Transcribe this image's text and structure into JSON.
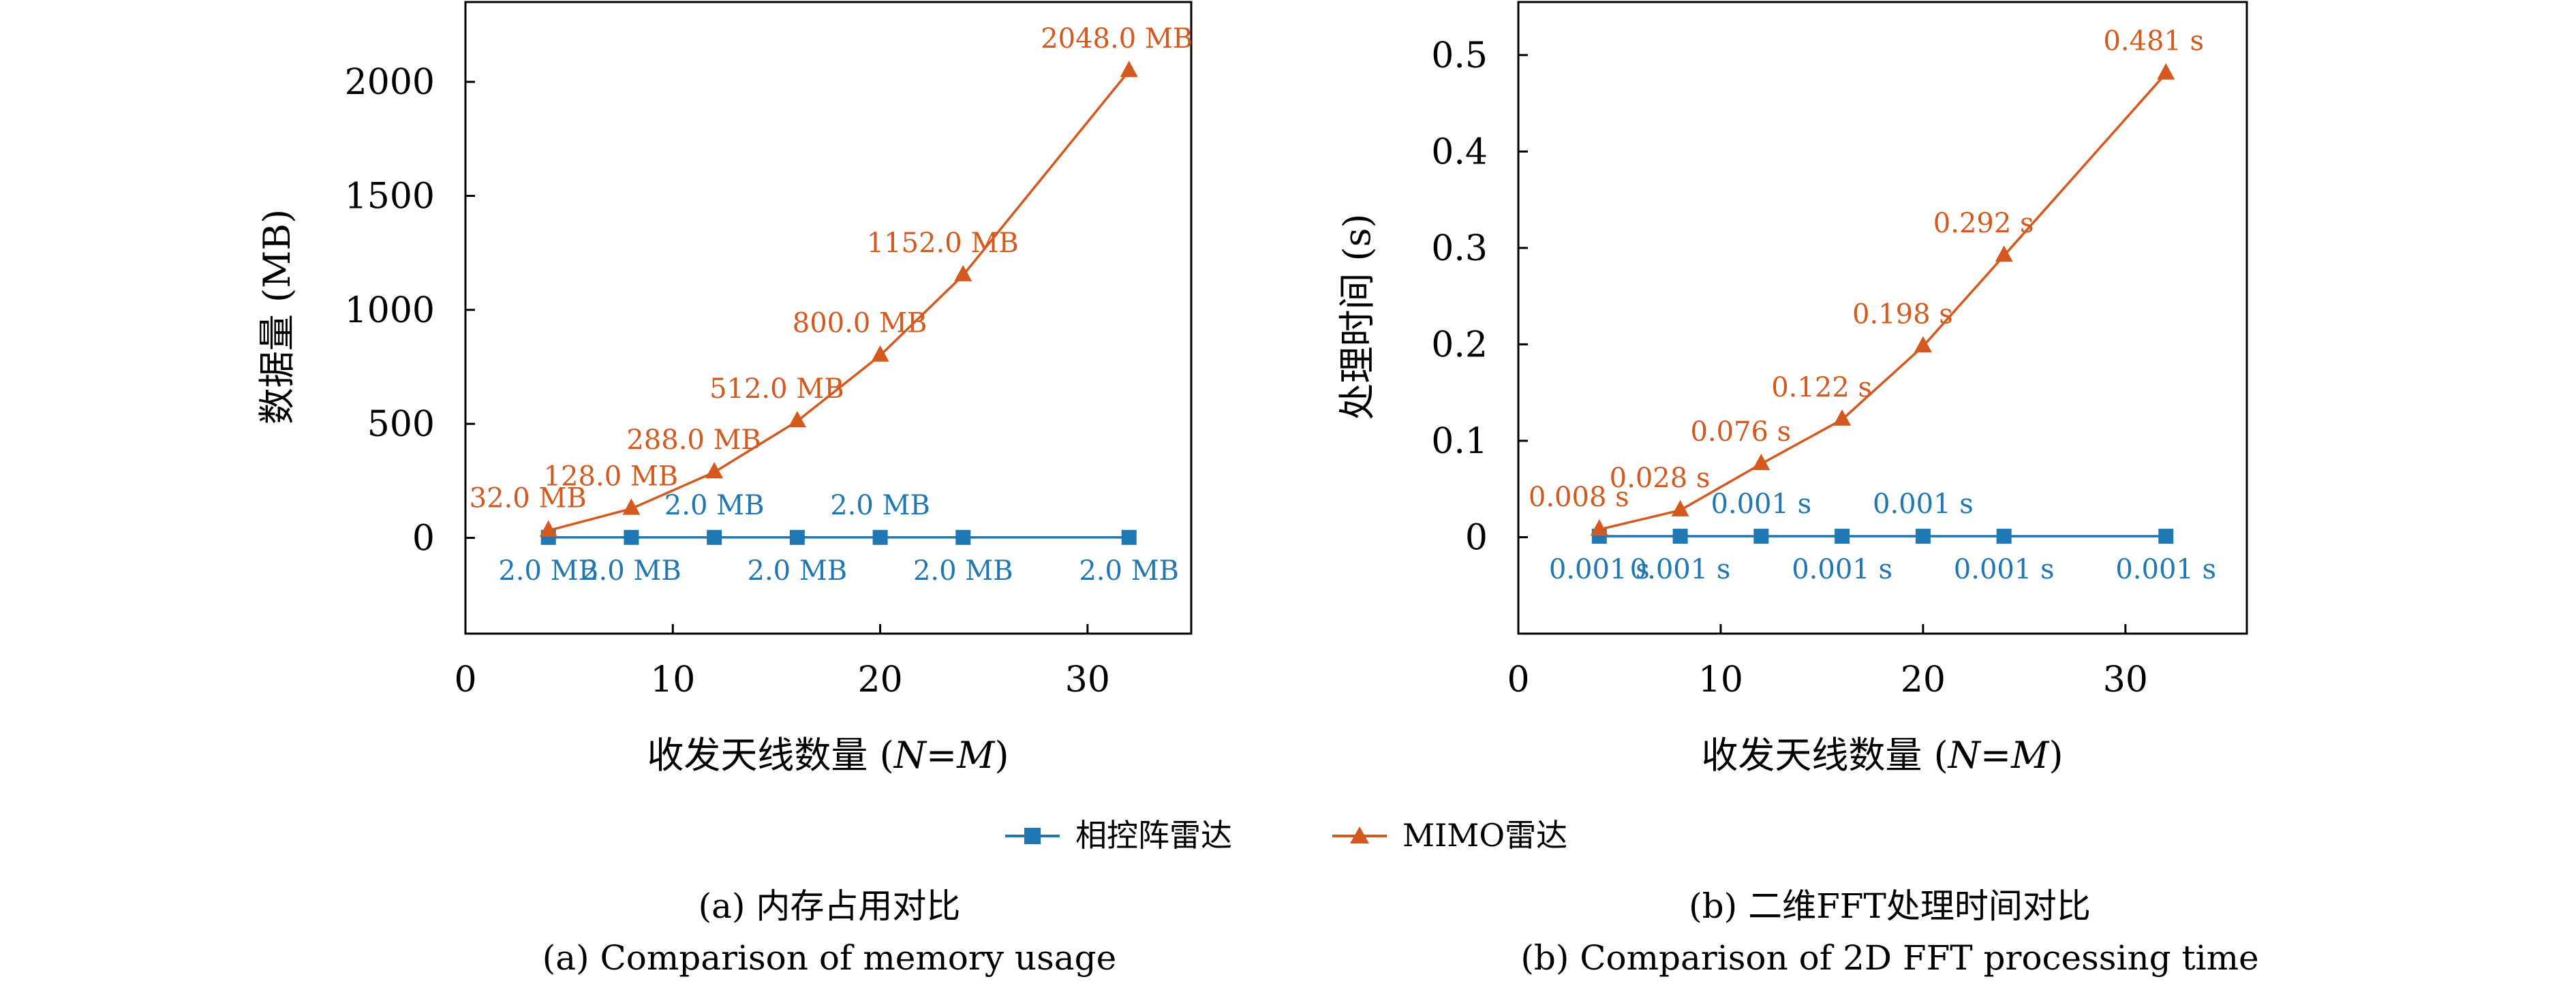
{
  "colors": {
    "phased": "#1f77b4",
    "mimo": "#d4591e",
    "axis": "#000000"
  },
  "legend": {
    "phased_label": "相控阵雷达",
    "mimo_label": "MIMO雷达",
    "placement": "bottom-center"
  },
  "captions": {
    "a_cn": "(a) 内存占用对比",
    "a_en": "(a) Comparison of memory usage",
    "b_cn": "(b) 二维FFT处理时间对比",
    "b_en": "(b) Comparison of 2D FFT processing time"
  },
  "chart_data": [
    {
      "type": "line",
      "title": "",
      "xlabel_text": "收发天线数量 (",
      "xlabel_var": "N=M",
      "xlabel_close": ")",
      "ylabel": "数据量 (MB)",
      "xlim": [
        0,
        35
      ],
      "ylim": [
        -420,
        2350
      ],
      "xticks": [
        "0",
        "10",
        "20",
        "30"
      ],
      "xtick_values": [
        0,
        10,
        20,
        30
      ],
      "yticks": [
        "0",
        "500",
        "1000",
        "1500",
        "2000"
      ],
      "ytick_values": [
        0,
        500,
        1000,
        1500,
        2000
      ],
      "grid": false,
      "x": [
        4,
        8,
        12,
        16,
        20,
        24,
        32
      ],
      "series": [
        {
          "name": "相控阵雷达",
          "marker": "square",
          "values": [
            2.0,
            2.0,
            2.0,
            2.0,
            2.0,
            2.0,
            2.0
          ],
          "labels": [
            "2.0 MB",
            "2.0 MB",
            "2.0 MB",
            "2.0 MB",
            "2.0 MB",
            "2.0 MB",
            "2.0 MB"
          ],
          "label_pos": [
            "below",
            "below",
            "above",
            "below",
            "above",
            "below",
            "below"
          ]
        },
        {
          "name": "MIMO雷达",
          "marker": "triangle",
          "values": [
            32.0,
            128.0,
            288.0,
            512.0,
            800.0,
            1152.0,
            2048.0
          ],
          "labels": [
            "32.0 MB",
            "128.0 MB",
            "288.0 MB",
            "512.0 MB",
            "800.0 MB",
            "1152.0 MB",
            "2048.0 MB"
          ],
          "label_pos": [
            "above",
            "above",
            "above",
            "above",
            "above",
            "above",
            "above"
          ]
        }
      ]
    },
    {
      "type": "line",
      "title": "",
      "xlabel_text": "收发天线数量 (",
      "xlabel_var": "N=M",
      "xlabel_close": ")",
      "ylabel": "处理时间 (s)",
      "xlim": [
        0,
        36
      ],
      "ylim": [
        -0.1,
        0.555
      ],
      "xticks": [
        "0",
        "10",
        "20",
        "30"
      ],
      "xtick_values": [
        0,
        10,
        20,
        30
      ],
      "yticks": [
        "0",
        "0.1",
        "0.2",
        "0.3",
        "0.4",
        "0.5"
      ],
      "ytick_values": [
        0,
        0.1,
        0.2,
        0.3,
        0.4,
        0.5
      ],
      "grid": false,
      "x": [
        4,
        8,
        12,
        16,
        20,
        24,
        32
      ],
      "series": [
        {
          "name": "相控阵雷达",
          "marker": "square",
          "values": [
            0.001,
            0.001,
            0.001,
            0.001,
            0.001,
            0.001,
            0.001
          ],
          "labels": [
            "0.001 s",
            "0.001 s",
            "0.001 s",
            "0.001 s",
            "0.001 s",
            "0.001 s",
            "0.001 s"
          ],
          "label_pos": [
            "below",
            "below",
            "above",
            "below",
            "above",
            "below",
            "below"
          ]
        },
        {
          "name": "MIMO雷达",
          "marker": "triangle",
          "values": [
            0.008,
            0.028,
            0.076,
            0.122,
            0.198,
            0.292,
            0.481
          ],
          "labels": [
            "0.008 s",
            "0.028 s",
            "0.076 s",
            "0.122 s",
            "0.198 s",
            "0.292 s",
            "0.481 s"
          ],
          "label_pos": [
            "above",
            "above",
            "above",
            "above",
            "above",
            "above",
            "above"
          ]
        }
      ]
    }
  ]
}
